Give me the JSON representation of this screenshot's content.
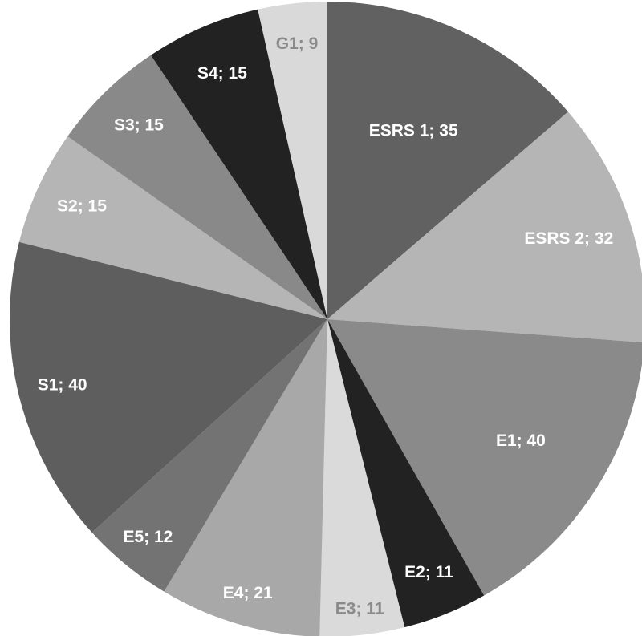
{
  "chart_data": {
    "type": "pie",
    "title": "",
    "start_angle": "top",
    "direction": "clockwise",
    "slices": [
      {
        "label": "ESRS 1; 35",
        "value": 35,
        "color": "#616161",
        "label_color": "#ffffff"
      },
      {
        "label": "ESRS 2; 32",
        "value": 32,
        "color": "#b5b5b5",
        "label_color": "#ffffff"
      },
      {
        "label": "E1; 40",
        "value": 40,
        "color": "#8a8a8a",
        "label_color": "#ffffff"
      },
      {
        "label": "E2; 11",
        "value": 11,
        "color": "#222222",
        "label_color": "#ffffff"
      },
      {
        "label": "E3; 11",
        "value": 11,
        "color": "#dadada",
        "label_color": "#8a8a8a"
      },
      {
        "label": "E4; 21",
        "value": 21,
        "color": "#a8a8a8",
        "label_color": "#ffffff"
      },
      {
        "label": "E5; 12",
        "value": 12,
        "color": "#737373",
        "label_color": "#ffffff"
      },
      {
        "label": "S1; 40",
        "value": 40,
        "color": "#5e5e5e",
        "label_color": "#ffffff"
      },
      {
        "label": "S2; 15",
        "value": 15,
        "color": "#b5b5b5",
        "label_color": "#ffffff"
      },
      {
        "label": "S3; 15",
        "value": 15,
        "color": "#898989",
        "label_color": "#ffffff"
      },
      {
        "label": "S4; 15",
        "value": 15,
        "color": "#222222",
        "label_color": "#ffffff"
      },
      {
        "label": "G1; 9",
        "value": 9,
        "color": "#d9d9d9",
        "label_color": "#8a8a8a"
      }
    ]
  }
}
